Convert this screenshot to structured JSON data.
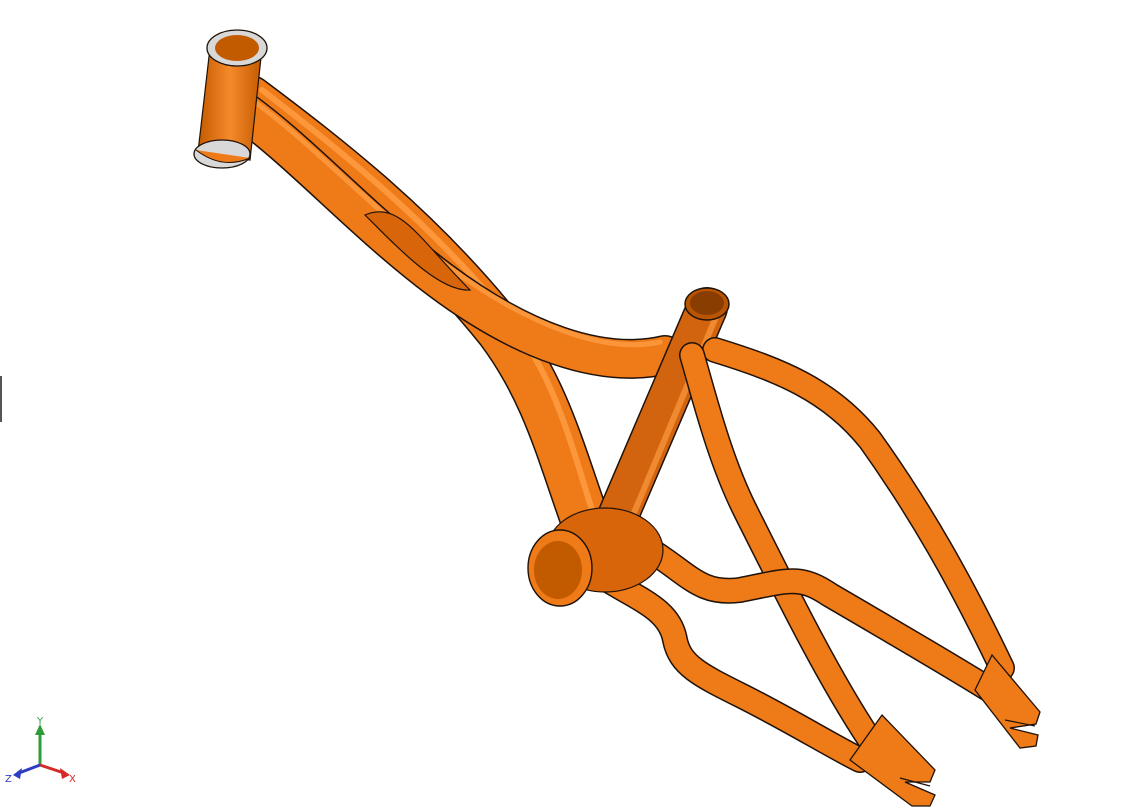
{
  "viewport": {
    "background": "#ffffff",
    "model": {
      "name": "bike-frame",
      "color": "#ef7a18",
      "highlight": "#ff9f45",
      "shadow": "#b95400",
      "edge_color": "#1f1208",
      "bearing_color": "#d8d8d8"
    },
    "triad": {
      "x_label": "X",
      "y_label": "Y",
      "z_label": "Z",
      "x_color": "#d52a2a",
      "y_color": "#2f9a3a",
      "z_color": "#2c3cc4"
    }
  }
}
